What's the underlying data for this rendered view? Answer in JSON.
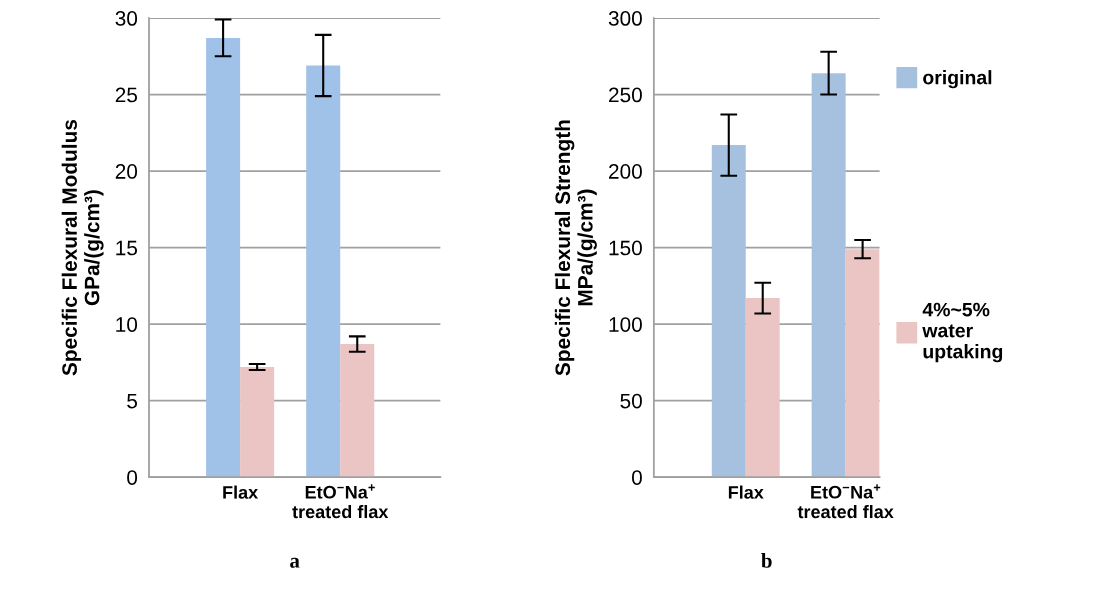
{
  "chart_data": [
    {
      "type": "bar",
      "title": "a",
      "ylabel": "Specific Flexural Modulus\nGPa/(g/cm³)",
      "categories": [
        "Flax",
        "EtO$^{−}$Na$^{+}$\ntreated flax"
      ],
      "ylim": [
        0,
        30
      ],
      "yticks": [
        0,
        5,
        10,
        15,
        20,
        25,
        30
      ],
      "grid": "y",
      "series": [
        {
          "color": "#a0c2e8",
          "values": [
            28.7,
            26.9
          ],
          "errors": [
            1.2,
            2.0
          ]
        },
        {
          "color": "#eac5c4",
          "values": [
            7.2,
            8.7
          ],
          "errors": [
            0.2,
            0.5
          ]
        }
      ]
    },
    {
      "type": "bar",
      "title": "b",
      "ylabel": "Specific Flexural Strength\nMPa/(g/cm³)",
      "categories": [
        "Flax",
        "EtO$^{−}$Na$^{+}$\ntreated flax"
      ],
      "ylim": [
        0,
        300
      ],
      "yticks": [
        0,
        50,
        100,
        150,
        200,
        250,
        300
      ],
      "grid": "y",
      "legend": "right",
      "series": [
        {
          "name": "original",
          "color": "#a6c0df",
          "values": [
            217,
            264
          ],
          "errors": [
            20,
            14
          ]
        },
        {
          "name": "4%~5%\nwater\nuptaking",
          "color": "#eac5c4",
          "values": [
            117,
            149
          ],
          "errors": [
            10,
            6
          ]
        }
      ]
    }
  ]
}
